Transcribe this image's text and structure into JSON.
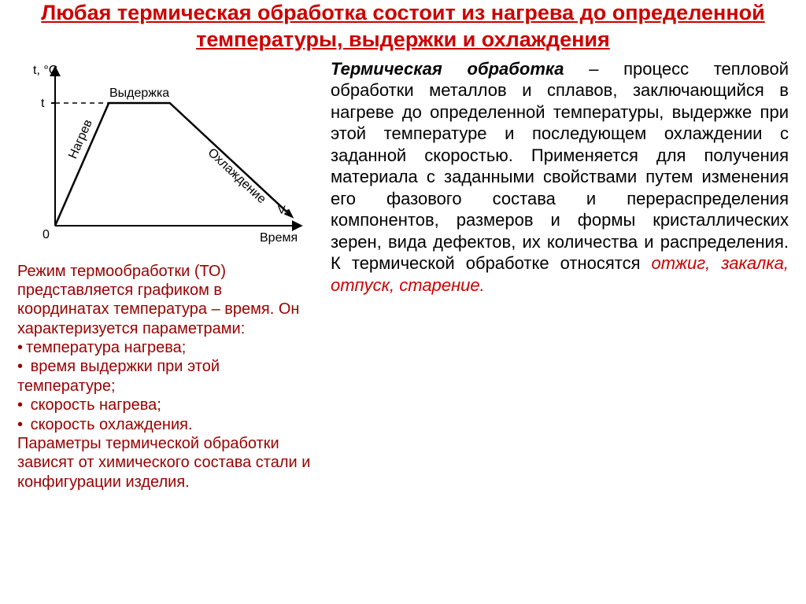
{
  "title_color": "#cc0000",
  "caption_color": "#990000",
  "body_color": "#000000",
  "italic_highlight_color": "#cc0000",
  "title": "Любая термическая обработка состоит из нагрева до определенной температуры, выдержки и охлаждения",
  "chart": {
    "type": "line",
    "xlabel": "Время",
    "ylabel": "t, °C",
    "ylabel_fontsize": 16,
    "xlabel_fontsize": 16,
    "origin_label": "0",
    "ytick_label": "t",
    "curve_color": "#000000",
    "curve_width": 2.5,
    "axis_color": "#000000",
    "axis_width": 2,
    "dash_color": "#000000",
    "segments": {
      "heating_label": "Нагрев",
      "hold_label": "Выдержка",
      "cooling_label": "Охлаждение",
      "end_label": "V₁"
    },
    "points_x": [
      0.12,
      0.27,
      0.49,
      0.95
    ],
    "points_y": [
      0.95,
      0.2,
      0.2,
      0.9
    ],
    "hold_y": 0.2,
    "background_color": "#ffffff"
  },
  "caption_intro": "Режим термообработки (ТО) представляется  графиком в координатах температура – время. Он характеризуется параметрами:",
  "params": [
    "температура нагрева;",
    " время выдержки при этой температуре;",
    " скорость нагрева;",
    " скорость охлаждения."
  ],
  "caption_outro": "Параметры термической обработки зависят от химического состава стали и конфигурации изделия.",
  "definition_term": "Термическая обработка",
  "definition_body1": " – процесс тепловой обработки металлов и сплавов, заключающийся в нагреве до определенной температуры, выдержке при этой температуре и последующем охлаждении с заданной скоростью. Применяется для получения материала с заданными свойствами путем изменения его фазового состава и перераспределения компонентов, размеров и формы кристаллических зерен, вида дефектов, их количества и распределения. К термической обработке относятся ",
  "definition_terms_italic": "отжиг, закалка, отпуск, старение."
}
